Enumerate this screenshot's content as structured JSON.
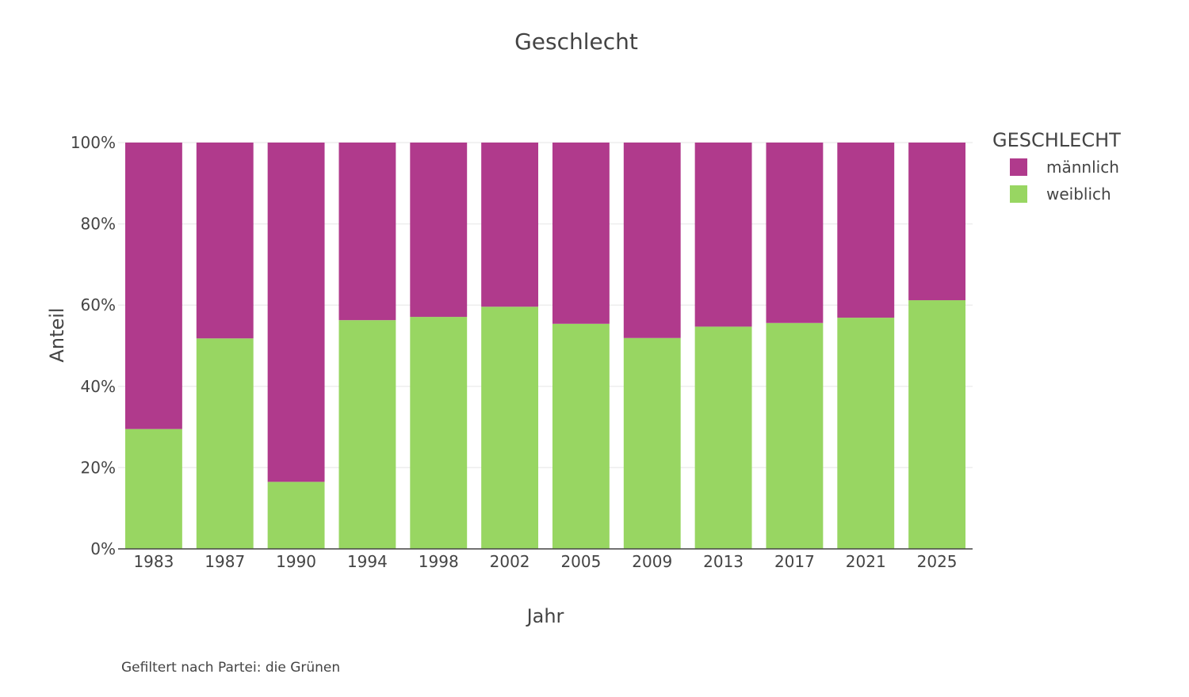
{
  "chart_data": {
    "type": "bar",
    "stacked": true,
    "title": "Geschlecht",
    "xlabel": "Jahr",
    "ylabel": "Anteil",
    "ylim": [
      0,
      1
    ],
    "y_tick_values": [
      0,
      0.2,
      0.4,
      0.6,
      0.8,
      1.0
    ],
    "y_tick_labels": [
      "0%",
      "20%",
      "40%",
      "60%",
      "80%",
      "100%"
    ],
    "grid": true,
    "categories": [
      "1983",
      "1987",
      "1990",
      "1994",
      "1998",
      "2002",
      "2005",
      "2009",
      "2013",
      "2017",
      "2021",
      "2025"
    ],
    "series": [
      {
        "name": "weiblich",
        "color": "#98d662",
        "values": [
          0.295,
          0.518,
          0.165,
          0.563,
          0.571,
          0.596,
          0.554,
          0.519,
          0.547,
          0.556,
          0.569,
          0.612
        ]
      },
      {
        "name": "männlich",
        "color": "#b03a8c",
        "values": [
          0.705,
          0.482,
          0.835,
          0.437,
          0.429,
          0.404,
          0.446,
          0.481,
          0.453,
          0.444,
          0.431,
          0.388
        ]
      }
    ],
    "legend": {
      "title": "GESCHLECHT",
      "position": "top-right",
      "order": [
        "männlich",
        "weiblich"
      ]
    },
    "caption": "Gefiltert nach Partei: die Grünen"
  }
}
